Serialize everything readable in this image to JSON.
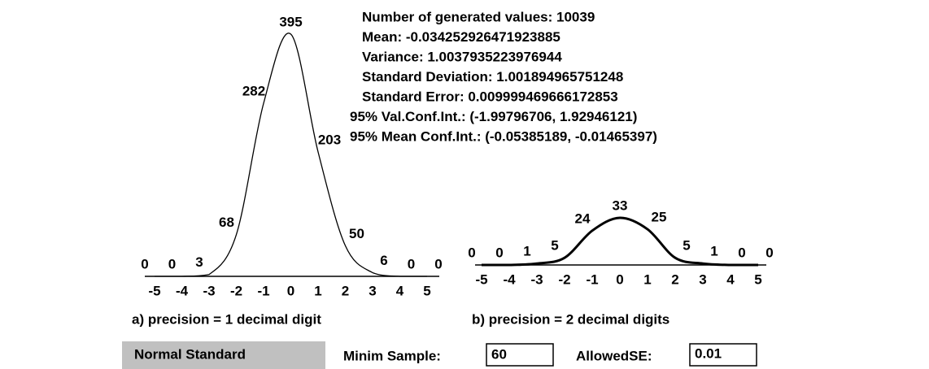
{
  "panels": [
    {
      "x_ticks": [
        -5,
        -4,
        -3,
        -2,
        -1,
        0,
        1,
        2,
        3,
        4,
        5
      ],
      "point_labels": [
        0,
        0,
        3,
        68,
        282,
        395,
        203,
        50,
        6,
        0,
        0
      ],
      "caption": "a) precision = 1 decimal digit"
    },
    {
      "x_ticks": [
        -5,
        -4,
        -3,
        -2,
        -1,
        0,
        1,
        2,
        3,
        4,
        5
      ],
      "point_labels": [
        0,
        0,
        1,
        5,
        24,
        33,
        25,
        5,
        1,
        0,
        0
      ],
      "caption": "b) precision = 2 decimal digits"
    }
  ],
  "stats": [
    "Number of generated values: 10039",
    "Mean: -0.034252926471923885",
    "Variance: 1.0037935223976944",
    "Standard Deviation: 1.001894965751248",
    "Standard Error: 0.009999469666172853",
    "95% Val.Conf.Int.: (-1.99796706, 1.92946121)",
    "95% Mean Conf.Int.: (-0.05385189, -0.01465397)"
  ],
  "controls": {
    "button": "Normal Standard",
    "sample_label": "Minim Sample:",
    "sample_value": "60",
    "se_label": "AllowedSE:",
    "se_value": "0.01"
  }
}
